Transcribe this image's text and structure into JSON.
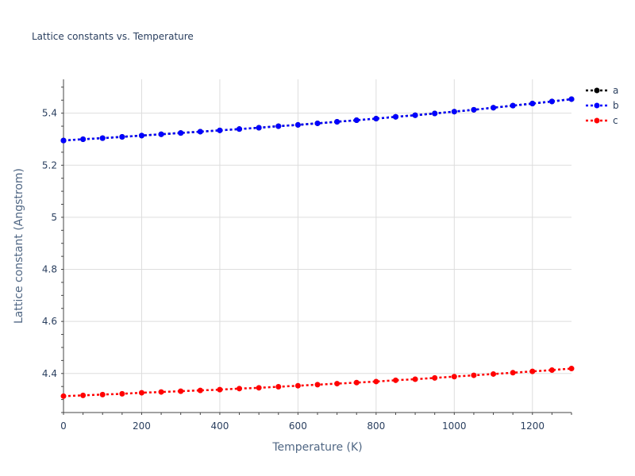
{
  "chart_data": {
    "type": "line",
    "title": "Lattice constants vs. Temperature",
    "xlabel": "Temperature (K)",
    "ylabel": "Lattice constant (Angstrom)",
    "xlim": [
      0,
      1300
    ],
    "ylim": [
      4.25,
      5.53
    ],
    "xticks": [
      0,
      200,
      400,
      600,
      800,
      1000,
      1200
    ],
    "xtick_labels": [
      "0",
      "200",
      "400",
      "600",
      "800",
      "1000",
      "1200"
    ],
    "yticks": [
      4.4,
      4.6,
      4.8,
      5.0,
      5.2,
      5.4
    ],
    "ytick_labels": [
      "4.4",
      "4.6",
      "4.8",
      "5",
      "5.2",
      "5.4"
    ],
    "grid": true,
    "legend_position": "top-right",
    "x": [
      0,
      50,
      100,
      150,
      200,
      250,
      300,
      350,
      400,
      450,
      500,
      550,
      600,
      650,
      700,
      750,
      800,
      850,
      900,
      950,
      1000,
      1050,
      1100,
      1150,
      1200,
      1250,
      1300
    ],
    "series": [
      {
        "name": "a",
        "color": "#000000",
        "values": [
          5.295,
          5.3,
          5.304,
          5.309,
          5.314,
          5.319,
          5.324,
          5.329,
          5.334,
          5.339,
          5.344,
          5.35,
          5.355,
          5.361,
          5.367,
          5.373,
          5.379,
          5.386,
          5.392,
          5.399,
          5.406,
          5.413,
          5.421,
          5.429,
          5.437,
          5.445,
          5.454
        ]
      },
      {
        "name": "b",
        "color": "#0000ff",
        "values": [
          5.295,
          5.3,
          5.304,
          5.309,
          5.314,
          5.319,
          5.324,
          5.329,
          5.334,
          5.339,
          5.344,
          5.35,
          5.355,
          5.361,
          5.367,
          5.373,
          5.379,
          5.386,
          5.392,
          5.399,
          5.406,
          5.413,
          5.421,
          5.429,
          5.437,
          5.445,
          5.454
        ]
      },
      {
        "name": "c",
        "color": "#ff0000",
        "values": [
          4.313,
          4.316,
          4.319,
          4.322,
          4.326,
          4.329,
          4.332,
          4.335,
          4.338,
          4.342,
          4.345,
          4.349,
          4.353,
          4.357,
          4.361,
          4.365,
          4.369,
          4.374,
          4.378,
          4.383,
          4.388,
          4.393,
          4.398,
          4.403,
          4.408,
          4.413,
          4.419
        ]
      }
    ]
  }
}
